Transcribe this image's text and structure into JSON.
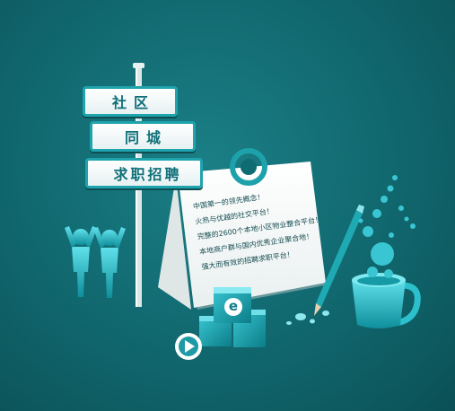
{
  "signs": [
    {
      "label": "社区"
    },
    {
      "label": "同城"
    },
    {
      "label": "求职招聘"
    }
  ],
  "note_lines": [
    "中国第一的领先概念！",
    "火热与优越的社交平台！",
    "完整的2600个本地小区物业整合平台！",
    "本地商户群与国内优秀企业聚合地！",
    "强大而有效的招聘求职平台！"
  ],
  "cube_letter": "e",
  "colors": {
    "background": "#126b72",
    "accent": "#1fa3ad",
    "sign_text": "#0f6f78"
  }
}
